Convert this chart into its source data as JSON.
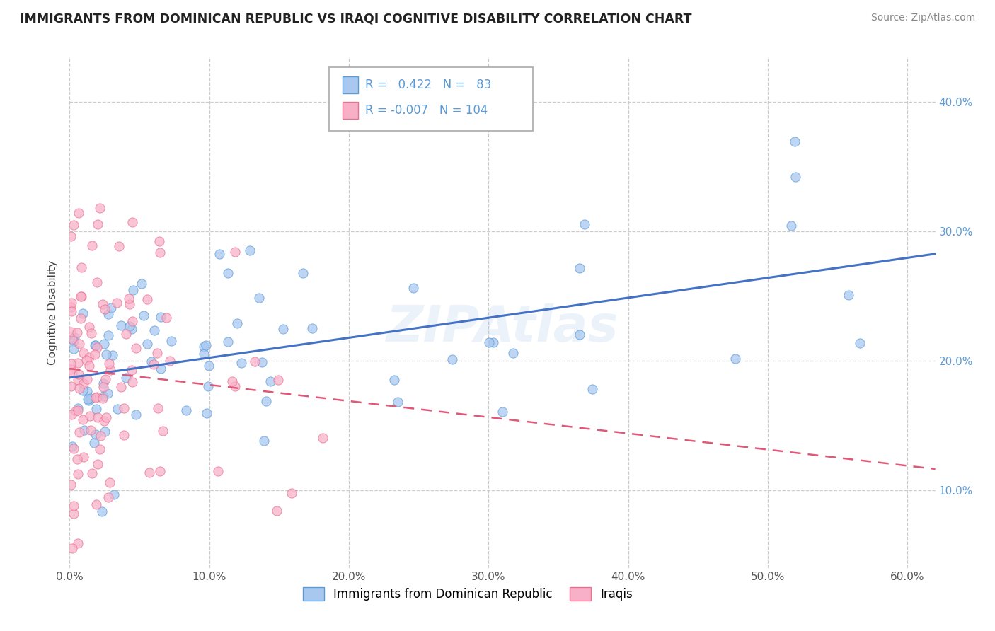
{
  "title": "IMMIGRANTS FROM DOMINICAN REPUBLIC VS IRAQI COGNITIVE DISABILITY CORRELATION CHART",
  "source": "Source: ZipAtlas.com",
  "ylabel": "Cognitive Disability",
  "xlim": [
    0.0,
    0.62
  ],
  "ylim": [
    0.04,
    0.435
  ],
  "xticks": [
    0.0,
    0.1,
    0.2,
    0.3,
    0.4,
    0.5,
    0.6
  ],
  "yticks": [
    0.1,
    0.2,
    0.3,
    0.4
  ],
  "ytick_labels": [
    "10.0%",
    "20.0%",
    "30.0%",
    "40.0%"
  ],
  "xtick_labels": [
    "0.0%",
    "10.0%",
    "20.0%",
    "30.0%",
    "40.0%",
    "50.0%",
    "60.0%"
  ],
  "blue_color": "#a8c8f0",
  "pink_color": "#f8b0c8",
  "blue_edge_color": "#5b9bd5",
  "pink_edge_color": "#e87090",
  "blue_line_color": "#4472c4",
  "pink_line_color": "#e05878",
  "r_blue": 0.422,
  "n_blue": 83,
  "r_pink": -0.007,
  "n_pink": 104,
  "legend_label_blue": "Immigrants from Dominican Republic",
  "legend_label_pink": "Iraqis",
  "watermark": "ZIPAtlas",
  "watermark_color": "#5b9bd5",
  "title_color": "#222222",
  "source_color": "#888888",
  "ylabel_color": "#444444",
  "tick_color": "#5b9bd5",
  "grid_color": "#cccccc",
  "blue_trend_start_y": 0.185,
  "blue_trend_end_y": 0.27,
  "pink_trend_y": 0.189
}
